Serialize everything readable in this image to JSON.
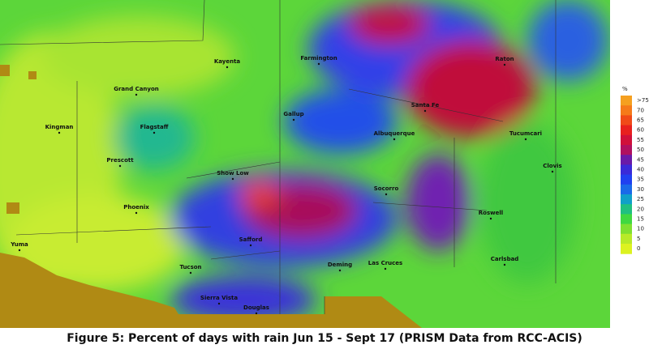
{
  "map": {
    "caption": "Figure 5: Percent of days with rain Jun 15 - Sept 17 (PRISM Data from RCC-ACIS)",
    "cities": [
      "Kayenta",
      "Farmington",
      "Raton",
      "Grand Canyon",
      "Santa Fe",
      "Gallup",
      "Kingman",
      "Flagstaff",
      "Albuquerque",
      "Tucumcari",
      "Prescott",
      "Clovis",
      "Show Low",
      "Socorro",
      "Phoenix",
      "Roswell",
      "Yuma",
      "Safford",
      "Carlsbad",
      "Tucson",
      "Deming",
      "Las Cruces",
      "Sierra Vista",
      "Douglas"
    ],
    "legend": {
      "unit": "%",
      "labels": [
        ">75",
        "70",
        "65",
        "60",
        "55",
        "50",
        "45",
        "40",
        "35",
        "30",
        "25",
        "20",
        "15",
        "10",
        "5",
        "0"
      ],
      "colors": [
        "#f5a020",
        "#f57a1a",
        "#f04a18",
        "#e8201e",
        "#d0103a",
        "#b01060",
        "#6a1aa8",
        "#3a2ad8",
        "#2040f0",
        "#1a6ae8",
        "#10a0c8",
        "#20c080",
        "#40d840",
        "#80e030",
        "#b8ea28",
        "#dcf220"
      ]
    }
  }
}
